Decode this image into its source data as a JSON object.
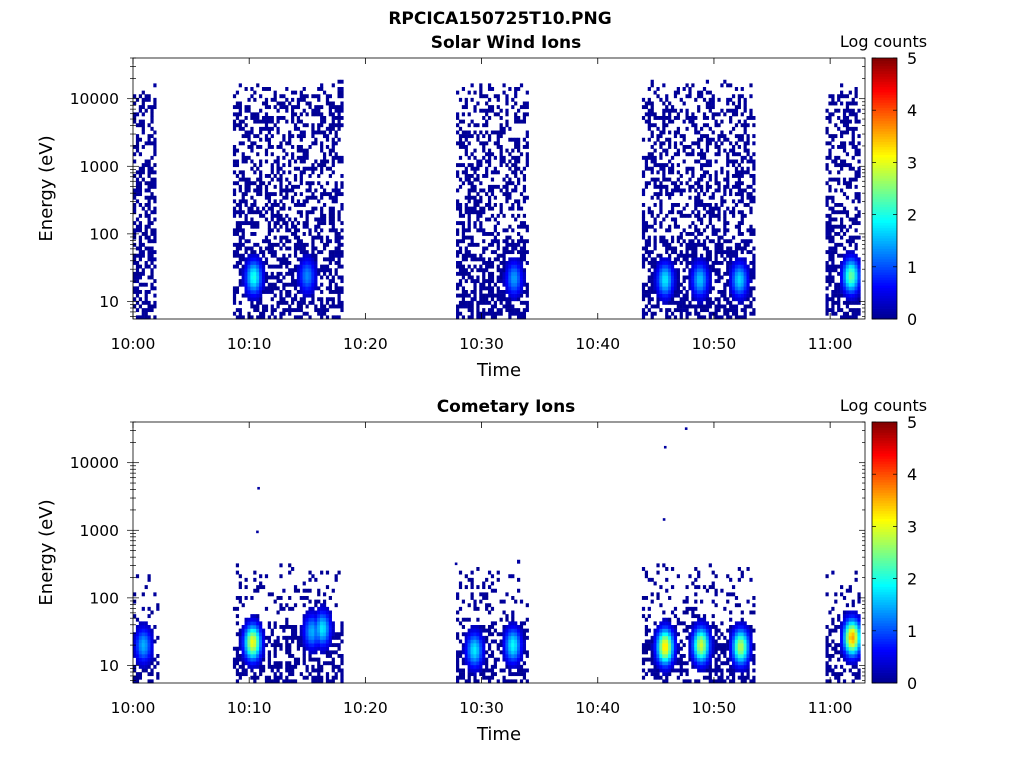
{
  "figure": {
    "title": "RPCICA150725T10.PNG"
  },
  "colormap": {
    "name": "jet",
    "stops": [
      "#00008f",
      "#0000ff",
      "#0080ff",
      "#00ffff",
      "#80ff80",
      "#ffff00",
      "#ff8000",
      "#ff0000",
      "#800000"
    ]
  },
  "chart_data": [
    {
      "type": "heatmap",
      "title": "Solar Wind Ions",
      "xlabel": "Time",
      "ylabel": "Energy (eV)",
      "x_ticks": [
        "10:00",
        "10:10",
        "10:20",
        "10:30",
        "10:40",
        "10:50",
        "11:00"
      ],
      "x_tick_minutes": [
        0,
        10,
        20,
        30,
        40,
        50,
        60
      ],
      "xlim_minutes": [
        0,
        63
      ],
      "y_scale": "log",
      "y_ticks": [
        "10",
        "100",
        "1000",
        "10000"
      ],
      "y_tick_values": [
        10,
        100,
        1000,
        10000
      ],
      "ylim": [
        5.5,
        40000
      ],
      "colorbar": {
        "label": "Log counts",
        "ticks": [
          "0",
          "1",
          "2",
          "3",
          "4",
          "5"
        ],
        "range": [
          0,
          5
        ]
      },
      "data_intervals_minutes": [
        [
          0.0,
          1.8
        ],
        [
          8.6,
          18.0
        ],
        [
          27.8,
          34.0
        ],
        [
          43.8,
          53.4
        ],
        [
          59.6,
          62.5
        ]
      ],
      "peaks": [
        {
          "minute": 10.4,
          "energy": 23,
          "log_counts": 2.0
        },
        {
          "minute": 15.0,
          "energy": 24,
          "log_counts": 1.3
        },
        {
          "minute": 32.8,
          "energy": 22,
          "log_counts": 1.4
        },
        {
          "minute": 45.8,
          "energy": 21,
          "log_counts": 1.8
        },
        {
          "minute": 48.8,
          "energy": 21,
          "log_counts": 1.6
        },
        {
          "minute": 52.2,
          "energy": 21,
          "log_counts": 1.7
        },
        {
          "minute": 61.8,
          "energy": 24,
          "log_counts": 2.4
        }
      ],
      "background_level": 0.1,
      "upper_energy_limit": 14000
    },
    {
      "type": "heatmap",
      "title": "Cometary Ions",
      "xlabel": "Time",
      "ylabel": "Energy (eV)",
      "x_ticks": [
        "10:00",
        "10:10",
        "10:20",
        "10:30",
        "10:40",
        "10:50",
        "11:00"
      ],
      "x_tick_minutes": [
        0,
        10,
        20,
        30,
        40,
        50,
        60
      ],
      "xlim_minutes": [
        0,
        63
      ],
      "y_scale": "log",
      "y_ticks": [
        "10",
        "100",
        "1000",
        "10000"
      ],
      "y_tick_values": [
        10,
        100,
        1000,
        10000
      ],
      "ylim": [
        5.5,
        40000
      ],
      "colorbar": {
        "label": "Log counts",
        "ticks": [
          "0",
          "1",
          "2",
          "3",
          "4",
          "5"
        ],
        "range": [
          0,
          5
        ]
      },
      "data_intervals_minutes": [
        [
          0.0,
          2.1
        ],
        [
          8.6,
          18.0
        ],
        [
          27.8,
          34.0
        ],
        [
          43.8,
          53.4
        ],
        [
          59.6,
          62.5
        ]
      ],
      "peaks": [
        {
          "minute": 0.9,
          "energy": 20,
          "log_counts": 1.5
        },
        {
          "minute": 10.3,
          "energy": 22,
          "log_counts": 3.1
        },
        {
          "minute": 15.4,
          "energy": 32,
          "log_counts": 1.5
        },
        {
          "minute": 16.3,
          "energy": 35,
          "log_counts": 1.8
        },
        {
          "minute": 29.4,
          "energy": 17,
          "log_counts": 1.8
        },
        {
          "minute": 32.7,
          "energy": 20,
          "log_counts": 1.9
        },
        {
          "minute": 45.8,
          "energy": 19,
          "log_counts": 3.3
        },
        {
          "minute": 48.9,
          "energy": 20,
          "log_counts": 2.9
        },
        {
          "minute": 52.3,
          "energy": 19,
          "log_counts": 2.8
        },
        {
          "minute": 61.9,
          "energy": 26,
          "log_counts": 3.6
        }
      ],
      "background_level": 0.1,
      "upper_energy_limit": 250,
      "sparse_points": [
        {
          "minute": 10.8,
          "energy": 4200
        },
        {
          "minute": 10.7,
          "energy": 950
        },
        {
          "minute": 27.8,
          "energy": 320
        },
        {
          "minute": 45.8,
          "energy": 17000
        },
        {
          "minute": 45.7,
          "energy": 1450
        },
        {
          "minute": 47.6,
          "energy": 32000
        }
      ]
    }
  ]
}
